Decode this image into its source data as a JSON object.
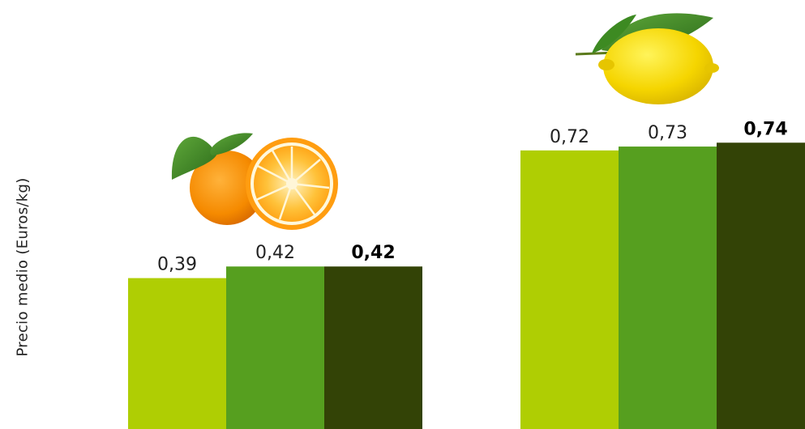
{
  "chart_data": {
    "type": "bar",
    "ylabel": "Precio medio (Euros/kg)",
    "categories": [
      "orange",
      "lemon"
    ],
    "category_icons": [
      "orange-fruit-icon",
      "lemon-fruit-icon"
    ],
    "series": [
      {
        "values": [
          0.39,
          0.72
        ],
        "color": "#afce03",
        "labels": [
          "0,39",
          "0,72"
        ],
        "bold": false
      },
      {
        "values": [
          0.42,
          0.73
        ],
        "color": "#569f1f",
        "labels": [
          "0,42",
          "0,73"
        ],
        "bold": false
      },
      {
        "values": [
          0.42,
          0.74
        ],
        "color": "#334306",
        "labels": [
          "0,42",
          "0,74"
        ],
        "bold": true
      }
    ],
    "ylim": [
      0,
      0.8
    ],
    "grid": false,
    "legend": "none"
  }
}
